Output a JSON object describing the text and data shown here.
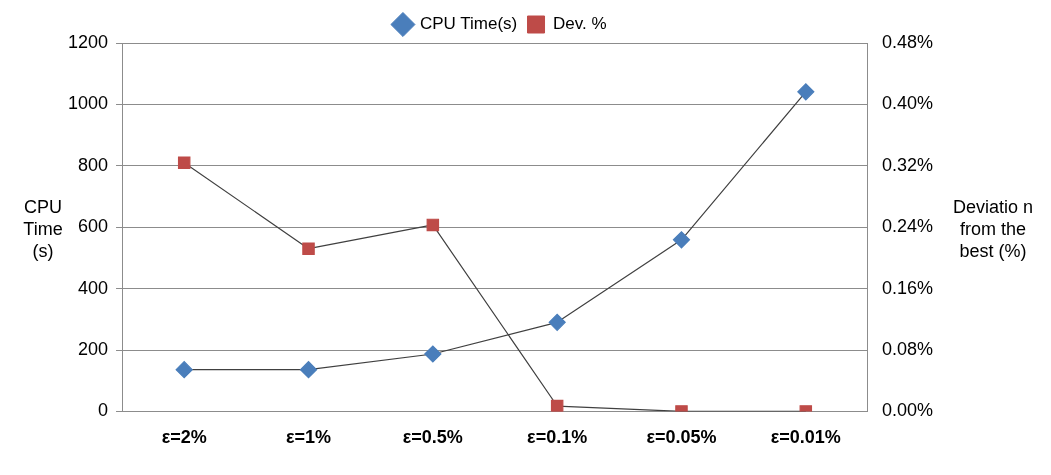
{
  "chart_data": {
    "type": "line",
    "categories": [
      "ε=2%",
      "ε=1%",
      "ε=0.5%",
      "ε=0.1%",
      "ε=0.05%",
      "ε=0.01%"
    ],
    "ylabel": "CPU Time (s)",
    "y2label": "Deviatio n from the best (%)",
    "ylim": [
      0,
      1200
    ],
    "yticks": [
      0,
      200,
      400,
      600,
      800,
      1000,
      1200
    ],
    "y2lim": [
      0,
      0.48
    ],
    "y2ticks": [
      {
        "value": 0,
        "label": "0.00%"
      },
      {
        "value": 0.08,
        "label": "0.08%"
      },
      {
        "value": 0.16,
        "label": "0.16%"
      },
      {
        "value": 0.24,
        "label": "0.24%"
      },
      {
        "value": 0.32,
        "label": "0.32%"
      },
      {
        "value": 0.4,
        "label": "0.40%"
      },
      {
        "value": 0.48,
        "label": "0.48%"
      }
    ],
    "grid": "y",
    "legend": "top",
    "series": [
      {
        "name": "CPU Time(s)",
        "color": "#4a7ebb",
        "marker": "diamond",
        "values": [
          136,
          136,
          187,
          290,
          559,
          1041
        ]
      },
      {
        "name": "Dev. %",
        "color": "#be4b48",
        "marker": "square",
        "axis": "y2",
        "values": [
          0.324,
          0.212,
          0.243,
          0.007,
          0,
          0
        ]
      }
    ]
  }
}
